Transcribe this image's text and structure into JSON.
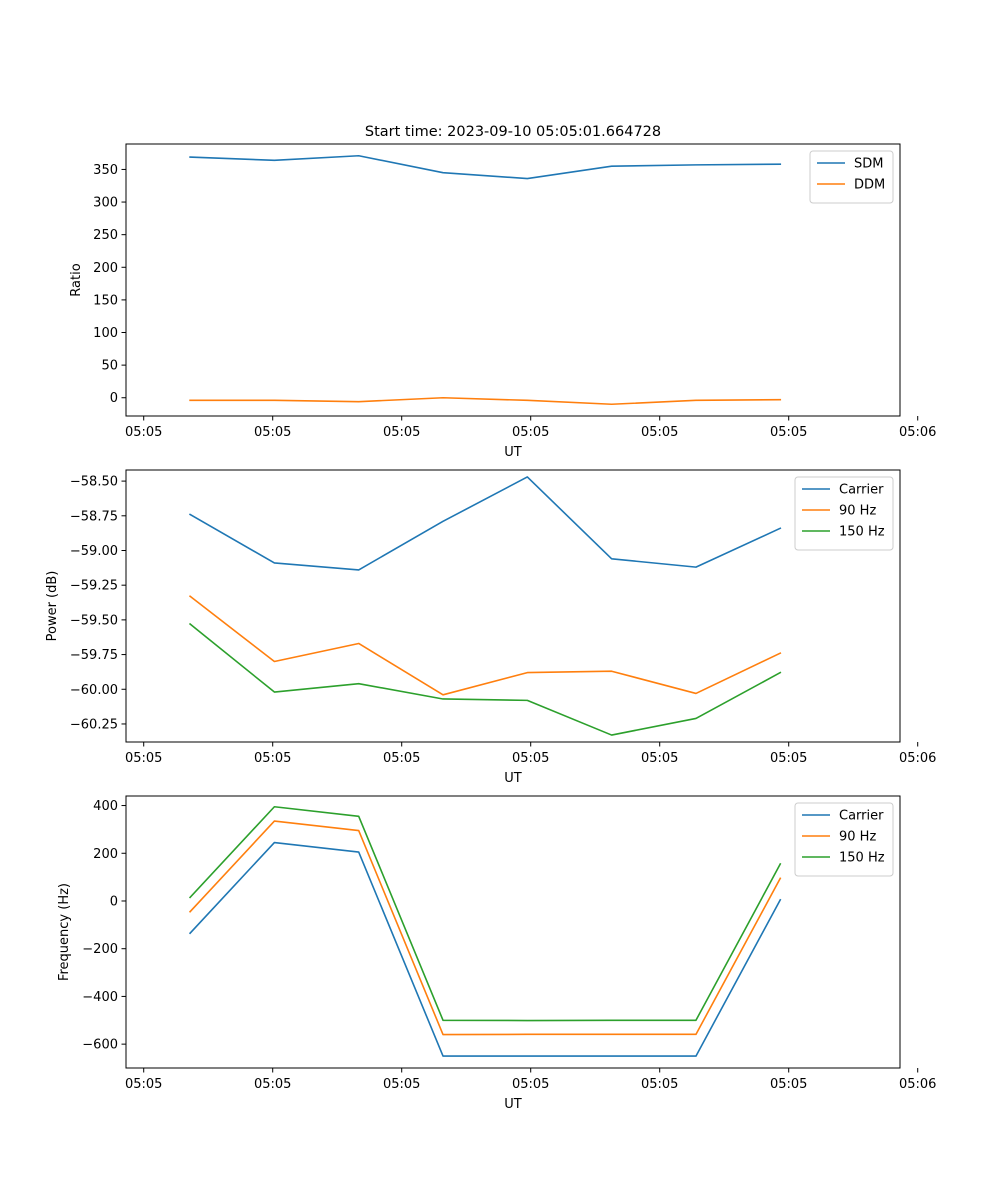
{
  "figure_title": "Start time: 2023-09-10 05:05:01.664728",
  "colors": {
    "blue": "#1f77b4",
    "orange": "#ff7f0e",
    "green": "#2ca02c"
  },
  "chart_data": [
    {
      "type": "line",
      "title": "Start time: 2023-09-10 05:05:01.664728",
      "xlabel": "UT",
      "ylabel": "Ratio",
      "x": [
        1,
        2,
        3,
        4,
        5,
        6,
        7,
        8
      ],
      "xlim": [
        0.24,
        9.42
      ],
      "ylim": [
        -28,
        389
      ],
      "xticks": [
        0.45,
        1.98,
        3.51,
        5.04,
        6.57,
        8.1,
        9.63
      ],
      "xtick_labels": [
        "05:05",
        "05:05",
        "05:05",
        "05:05",
        "05:05",
        "05:05",
        "05:06"
      ],
      "yticks": [
        0,
        50,
        100,
        150,
        200,
        250,
        300,
        350
      ],
      "ytick_labels": [
        "0",
        "50",
        "100",
        "150",
        "200",
        "250",
        "300",
        "350"
      ],
      "legend": "top-right",
      "series": [
        {
          "name": "SDM",
          "color": "#1f77b4",
          "values": [
            369,
            364,
            371,
            345,
            336,
            355,
            357,
            358
          ]
        },
        {
          "name": "DDM",
          "color": "#ff7f0e",
          "values": [
            -4,
            -4,
            -6,
            0,
            -4,
            -10,
            -4,
            -3
          ]
        }
      ]
    },
    {
      "type": "line",
      "title": "",
      "xlabel": "UT",
      "ylabel": "Power (dB)",
      "x": [
        1,
        2,
        3,
        4,
        5,
        6,
        7,
        8
      ],
      "xlim": [
        0.24,
        9.42
      ],
      "ylim": [
        -60.38,
        -58.42
      ],
      "xticks": [
        0.45,
        1.98,
        3.51,
        5.04,
        6.57,
        8.1,
        9.63
      ],
      "xtick_labels": [
        "05:05",
        "05:05",
        "05:05",
        "05:05",
        "05:05",
        "05:05",
        "05:06"
      ],
      "yticks": [
        -58.5,
        -58.75,
        -59.0,
        -59.25,
        -59.5,
        -59.75,
        -60.0,
        -60.25
      ],
      "ytick_labels": [
        "−58.50",
        "−58.75",
        "−59.00",
        "−59.25",
        "−59.50",
        "−59.75",
        "−60.00",
        "−60.25"
      ],
      "legend": "top-right",
      "series": [
        {
          "name": "Carrier",
          "color": "#1f77b4",
          "values": [
            -58.74,
            -59.09,
            -59.14,
            -58.79,
            -58.47,
            -59.06,
            -59.12,
            -58.84
          ]
        },
        {
          "name": "90 Hz",
          "color": "#ff7f0e",
          "values": [
            -59.33,
            -59.8,
            -59.67,
            -60.04,
            -59.88,
            -59.87,
            -60.03,
            -59.74
          ]
        },
        {
          "name": "150 Hz",
          "color": "#2ca02c",
          "values": [
            -59.53,
            -60.02,
            -59.96,
            -60.07,
            -60.08,
            -60.33,
            -60.21,
            -59.88
          ]
        }
      ]
    },
    {
      "type": "line",
      "title": "",
      "xlabel": "UT",
      "ylabel": "Frequency (Hz)",
      "x": [
        1,
        2,
        3,
        4,
        5,
        6,
        7,
        8
      ],
      "xlim": [
        0.24,
        9.42
      ],
      "ylim": [
        -700,
        440
      ],
      "xticks": [
        0.45,
        1.98,
        3.51,
        5.04,
        6.57,
        8.1,
        9.63
      ],
      "xtick_labels": [
        "05:05",
        "05:05",
        "05:05",
        "05:05",
        "05:05",
        "05:05",
        "05:06"
      ],
      "yticks": [
        400,
        200,
        0,
        -200,
        -400,
        -600
      ],
      "ytick_labels": [
        "400",
        "200",
        "0",
        "−200",
        "−400",
        "−600"
      ],
      "legend": "top-right",
      "series": [
        {
          "name": "Carrier",
          "color": "#1f77b4",
          "values": [
            -135,
            245,
            205,
            -650,
            -650,
            -650,
            -650,
            5
          ]
        },
        {
          "name": "90 Hz",
          "color": "#ff7f0e",
          "values": [
            -45,
            335,
            295,
            -560,
            -559,
            -559,
            -559,
            95
          ]
        },
        {
          "name": "150 Hz",
          "color": "#2ca02c",
          "values": [
            15,
            395,
            355,
            -500,
            -501,
            -500,
            -500,
            155
          ]
        }
      ]
    }
  ]
}
